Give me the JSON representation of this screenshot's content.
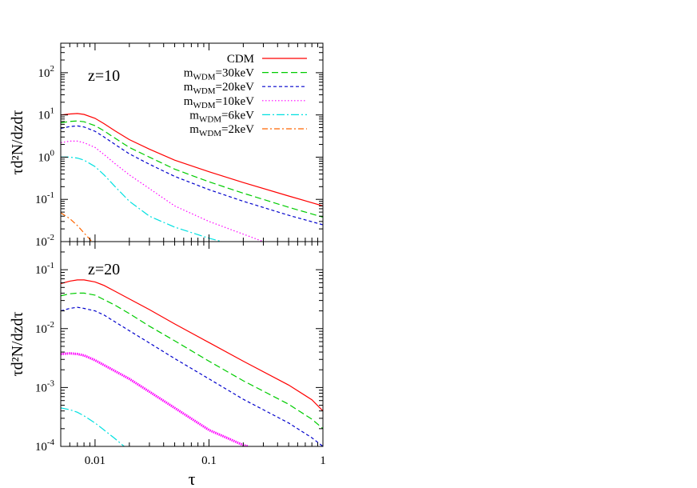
{
  "chart_data": [
    {
      "type": "line",
      "panel_label": "z=10",
      "ylabel": "τd²N/dzdτ",
      "xlabel": "",
      "xscale": "log",
      "yscale": "log",
      "xlim": [
        0.005,
        1
      ],
      "ylim": [
        0.01,
        500
      ],
      "x_ticks": [
        "",
        "",
        ""
      ],
      "y_ticks": [
        "10^2",
        "10^1",
        "10^0",
        "10^-1",
        "10^-2"
      ],
      "legend_position": "top-right",
      "series": [
        {
          "name": "CDM",
          "color": "#ff0000",
          "dash": "solid",
          "x": [
            0.005,
            0.006,
            0.007,
            0.008,
            0.01,
            0.012,
            0.015,
            0.02,
            0.03,
            0.05,
            0.1,
            0.2,
            0.5,
            1.0
          ],
          "y": [
            10,
            10.5,
            10.8,
            10.3,
            8.3,
            6.2,
            4.2,
            2.6,
            1.55,
            0.85,
            0.45,
            0.25,
            0.12,
            0.07
          ]
        },
        {
          "name": "m_WDM=30keV",
          "color": "#00cc00",
          "dash": "8,4",
          "x": [
            0.005,
            0.006,
            0.007,
            0.008,
            0.01,
            0.012,
            0.015,
            0.02,
            0.03,
            0.05,
            0.1,
            0.2,
            0.5,
            1.0
          ],
          "y": [
            6.5,
            7.0,
            7.2,
            6.9,
            5.6,
            4.2,
            2.8,
            1.7,
            1.0,
            0.52,
            0.26,
            0.14,
            0.065,
            0.038
          ]
        },
        {
          "name": "m_WDM=20keV",
          "color": "#0000cc",
          "dash": "4,3",
          "x": [
            0.005,
            0.006,
            0.007,
            0.008,
            0.01,
            0.012,
            0.015,
            0.02,
            0.03,
            0.05,
            0.1,
            0.2,
            0.5,
            1.0
          ],
          "y": [
            4.8,
            5.3,
            5.5,
            5.2,
            4.1,
            3.0,
            2.0,
            1.2,
            0.68,
            0.35,
            0.17,
            0.09,
            0.042,
            0.025
          ]
        },
        {
          "name": "m_WDM=10keV",
          "color": "#ff00ff",
          "dash": "1.5,2.5",
          "x": [
            0.005,
            0.006,
            0.007,
            0.008,
            0.01,
            0.012,
            0.015,
            0.02,
            0.03,
            0.05,
            0.1,
            0.2,
            0.3
          ],
          "y": [
            2.2,
            2.4,
            2.4,
            2.2,
            1.7,
            1.15,
            0.7,
            0.38,
            0.18,
            0.07,
            0.03,
            0.015,
            0.01
          ]
        },
        {
          "name": "m_WDM=6keV",
          "color": "#00e0e0",
          "dash": "10,3,2,3",
          "x": [
            0.005,
            0.006,
            0.007,
            0.008,
            0.01,
            0.012,
            0.015,
            0.02,
            0.03,
            0.05,
            0.1,
            0.13
          ],
          "y": [
            1.0,
            1.0,
            0.95,
            0.85,
            0.6,
            0.38,
            0.2,
            0.09,
            0.04,
            0.022,
            0.012,
            0.01
          ]
        },
        {
          "name": "m_WDM=2keV",
          "color": "#ff6600",
          "dash": "7,3,2,3",
          "x": [
            0.005,
            0.006,
            0.007,
            0.008,
            0.0094
          ],
          "y": [
            0.048,
            0.035,
            0.024,
            0.016,
            0.01
          ]
        }
      ]
    },
    {
      "type": "line",
      "panel_label": "z=20",
      "ylabel": "τd²N/dzdτ",
      "xlabel": "τ",
      "xscale": "log",
      "yscale": "log",
      "xlim": [
        0.005,
        1
      ],
      "ylim": [
        0.0001,
        0.3
      ],
      "x_ticks": [
        "0.01",
        "0.1",
        "1"
      ],
      "y_ticks": [
        "10^-1",
        "10^-2",
        "10^-3",
        "10^-4"
      ],
      "series": [
        {
          "name": "CDM",
          "color": "#ff0000",
          "dash": "solid",
          "x": [
            0.005,
            0.006,
            0.007,
            0.008,
            0.01,
            0.012,
            0.015,
            0.02,
            0.03,
            0.05,
            0.1,
            0.2,
            0.5,
            0.8,
            1.0
          ],
          "y": [
            0.058,
            0.064,
            0.067,
            0.067,
            0.062,
            0.054,
            0.043,
            0.032,
            0.021,
            0.012,
            0.0058,
            0.0028,
            0.0011,
            0.00062,
            0.0004
          ]
        },
        {
          "name": "m_WDM=30keV",
          "color": "#00cc00",
          "dash": "8,4",
          "x": [
            0.005,
            0.006,
            0.007,
            0.008,
            0.01,
            0.012,
            0.015,
            0.02,
            0.03,
            0.05,
            0.1,
            0.2,
            0.5,
            0.8,
            1.0
          ],
          "y": [
            0.036,
            0.039,
            0.04,
            0.04,
            0.037,
            0.031,
            0.025,
            0.018,
            0.011,
            0.0062,
            0.0028,
            0.0013,
            0.00052,
            0.00029,
            0.0002
          ]
        },
        {
          "name": "m_WDM=20keV",
          "color": "#0000cc",
          "dash": "4,3",
          "x": [
            0.005,
            0.006,
            0.007,
            0.008,
            0.01,
            0.012,
            0.015,
            0.02,
            0.03,
            0.05,
            0.1,
            0.2,
            0.5,
            0.8,
            1.0
          ],
          "y": [
            0.02,
            0.022,
            0.023,
            0.022,
            0.02,
            0.017,
            0.013,
            0.0092,
            0.0057,
            0.0031,
            0.0014,
            0.00063,
            0.00025,
            0.00014,
            0.0001
          ]
        },
        {
          "name": "m_WDM=10keV",
          "color": "#ff00ff",
          "dash": "1.5,1",
          "x": [
            0.005,
            0.006,
            0.007,
            0.008,
            0.01,
            0.015,
            0.02,
            0.03,
            0.05,
            0.1,
            0.2,
            0.22
          ],
          "y": [
            0.0037,
            0.0038,
            0.0037,
            0.0035,
            0.0029,
            0.0019,
            0.0014,
            0.00085,
            0.00045,
            0.00019,
            0.000105,
            0.0001
          ]
        },
        {
          "name": "m_WDM=6keV",
          "color": "#00e0e0",
          "dash": "10,3,2,3",
          "x": [
            0.005,
            0.006,
            0.007,
            0.008,
            0.01,
            0.012,
            0.015,
            0.018
          ],
          "y": [
            0.00045,
            0.00042,
            0.00038,
            0.00033,
            0.00025,
            0.00019,
            0.000135,
            0.0001
          ]
        }
      ]
    }
  ]
}
